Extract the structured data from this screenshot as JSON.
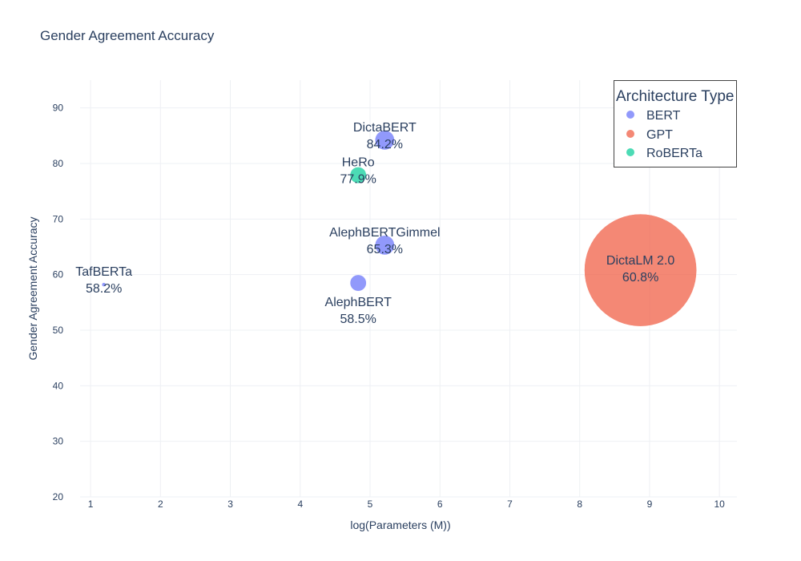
{
  "chart_data": {
    "type": "scatter",
    "title": "Gender Agreement Accuracy",
    "xlabel": "log(Parameters (M))",
    "ylabel": "Gender Agreement Accuracy",
    "xlim": [
      0.85,
      10.25
    ],
    "ylim": [
      20,
      95
    ],
    "xticks": [
      "1",
      "2",
      "3",
      "4",
      "5",
      "6",
      "7",
      "8",
      "9",
      "10"
    ],
    "yticks": [
      "20",
      "30",
      "40",
      "50",
      "60",
      "70",
      "80",
      "90"
    ],
    "grid": true,
    "legend": {
      "title": "Architecture Type",
      "position": "top-right",
      "entries": [
        {
          "name": "BERT",
          "color": "#636efa"
        },
        {
          "name": "GPT",
          "color": "#ef553b"
        },
        {
          "name": "RoBERTa",
          "color": "#00cc96"
        }
      ]
    },
    "points": [
      {
        "name": "DictaBERT",
        "label": "84.2%",
        "x": 5.21,
        "y": 84.2,
        "size": 184,
        "series": "BERT",
        "label_pos": "top"
      },
      {
        "name": "HeRo",
        "label": "77.9%",
        "x": 4.83,
        "y": 77.9,
        "size": 125,
        "series": "RoBERTa",
        "label_pos": "top"
      },
      {
        "name": "AlephBERTGimmel",
        "label": "65.3%",
        "x": 5.21,
        "y": 65.3,
        "size": 184,
        "series": "BERT",
        "label_pos": "top"
      },
      {
        "name": "AlephBERT",
        "label": "58.5%",
        "x": 4.83,
        "y": 58.5,
        "size": 125,
        "series": "BERT",
        "label_pos": "bottom"
      },
      {
        "name": "TafBERTa",
        "label": "58.2%",
        "x": 1.19,
        "y": 58.2,
        "size": 3.3,
        "series": "BERT",
        "label_pos": "top"
      },
      {
        "name": "DictaLM 2.0",
        "label": "60.8%",
        "x": 8.87,
        "y": 60.8,
        "size": 7100,
        "series": "GPT",
        "label_pos": "center"
      }
    ]
  }
}
